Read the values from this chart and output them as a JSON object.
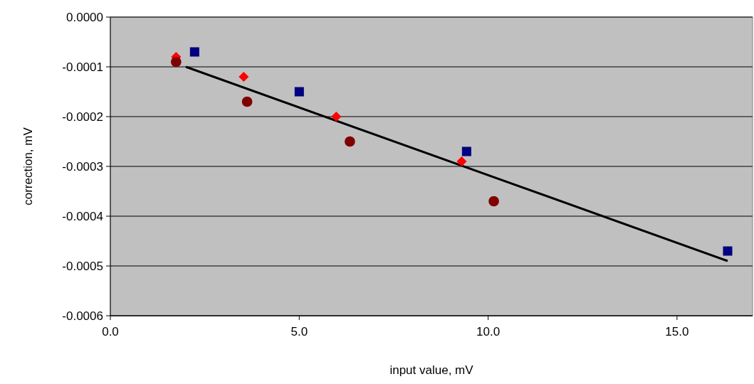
{
  "chart_data": {
    "type": "scatter",
    "xlabel": "input value, mV",
    "ylabel": "correction, mV",
    "xlim": [
      0,
      17
    ],
    "ylim": [
      -0.0006,
      0
    ],
    "xticks": [
      {
        "value": 0,
        "label": "0.0"
      },
      {
        "value": 5,
        "label": "5.0"
      },
      {
        "value": 10,
        "label": "10.0"
      },
      {
        "value": 15,
        "label": "15.0"
      }
    ],
    "yticks": [
      {
        "value": -0.0006,
        "label": "-0.0006"
      },
      {
        "value": -0.0005,
        "label": "-0.0005"
      },
      {
        "value": -0.0004,
        "label": "-0.0004"
      },
      {
        "value": -0.0003,
        "label": "-0.0003"
      },
      {
        "value": -0.0002,
        "label": "-0.0002"
      },
      {
        "value": -0.0001,
        "label": "-0.0001"
      },
      {
        "value": 0,
        "label": "0.0000"
      }
    ],
    "grid": "y",
    "series": [
      {
        "type": "line",
        "color": "#000000",
        "marker": "none",
        "x": [
          2.0,
          16.34
        ],
        "values": [
          -0.0001,
          -0.00049
        ]
      },
      {
        "color": "#ff0000",
        "marker": "diamond",
        "x": [
          1.74,
          3.53,
          5.98,
          9.3
        ],
        "values": [
          -8e-05,
          -0.00012,
          -0.0002,
          -0.00029
        ]
      },
      {
        "color": "#800000",
        "marker": "circle",
        "x": [
          1.74,
          3.62,
          6.34,
          10.15
        ],
        "values": [
          -9e-05,
          -0.00017,
          -0.00025,
          -0.00037
        ]
      },
      {
        "color": "#000080",
        "marker": "square",
        "x": [
          2.23,
          5.0,
          9.43,
          16.34
        ],
        "values": [
          -7e-05,
          -0.00015,
          -0.00027,
          -0.00047
        ]
      }
    ]
  }
}
